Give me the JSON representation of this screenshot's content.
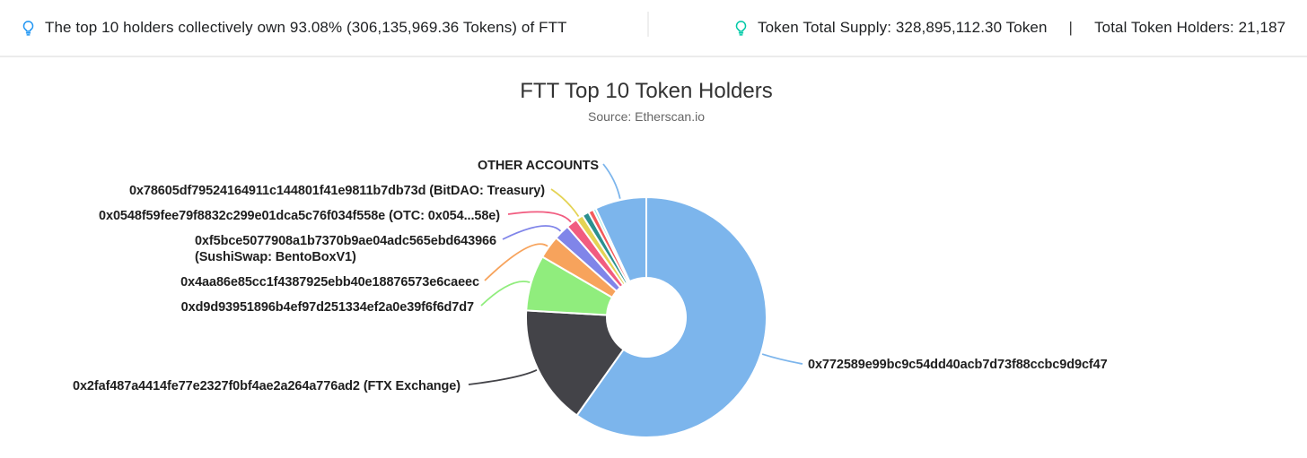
{
  "header": {
    "left_note": "The top 10 holders collectively own 93.08% (306,135,969.36 Tokens) of FTT",
    "right": {
      "supply": "Token Total Supply: 328,895,112.30 Token",
      "separator": "|",
      "holders": "Total Token Holders: 21,187"
    }
  },
  "chart_data": {
    "type": "pie",
    "subtype": "donut",
    "title": "FTT Top 10 Token Holders",
    "subtitle": "Source: Etherscan.io",
    "source": "Etherscan.io",
    "direction": "clockwise",
    "start_angle_deg": 0,
    "inner_radius_ratio": 0.33,
    "legend": "none",
    "value_unit": "percent of total token supply (estimated from slice angles)",
    "top10_combined_pct": 93.08,
    "top10_combined_tokens": "306,135,969.36",
    "token_total_supply": "328,895,112.30",
    "total_token_holders": "21,187",
    "slices": [
      {
        "label": "0x772589e99bc9c54dd40acb7d73f88ccbc9d9cf47",
        "value_pct": 59.8,
        "color": "#7cb5ec"
      },
      {
        "label": "0x2faf487a4414fe77e2327f0bf4ae2a264a776ad2 (FTX Exchange)",
        "value_pct": 16.1,
        "color": "#434348"
      },
      {
        "label": "0xd9d93951896b4ef97d251334ef2a0e39f6f6d7d7",
        "value_pct": 7.5,
        "color": "#90ed7d"
      },
      {
        "label": "0x4aa86e85cc1f4387925ebb40e18876573e6caeec",
        "value_pct": 3.1,
        "color": "#f7a35c"
      },
      {
        "label": "0xf5bce5077908a1b7370b9ae04adc565ebd643966\n(SushiSwap: BentoBoxV1)",
        "value_pct": 2.1,
        "color": "#8085e9"
      },
      {
        "label": "0x0548f59fee79f8832c299e01dca5c76f034f558e (OTC: 0x054...58e)",
        "value_pct": 1.5,
        "color": "#f15c80"
      },
      {
        "label": "0x78605df79524164911c144801f41e9811b7db73d (BitDAO: Treasury)",
        "value_pct": 1.0,
        "color": "#e4d354"
      },
      {
        "label": "",
        "value_pct": 0.9,
        "color": "#2b908f"
      },
      {
        "label": "",
        "value_pct": 0.7,
        "color": "#f45b5b"
      },
      {
        "label": "",
        "value_pct": 0.38,
        "color": "#91e8e1"
      },
      {
        "label": "OTHER ACCOUNTS",
        "value_pct": 6.92,
        "color": "#7cb5ec"
      }
    ]
  },
  "colors": {
    "accent_blue": "#2196f3",
    "accent_teal": "#00c9a7",
    "header_border": "#ebebeb",
    "title_text": "#333333",
    "subtitle_text": "#666666",
    "label_text": "#1f1f1f"
  }
}
